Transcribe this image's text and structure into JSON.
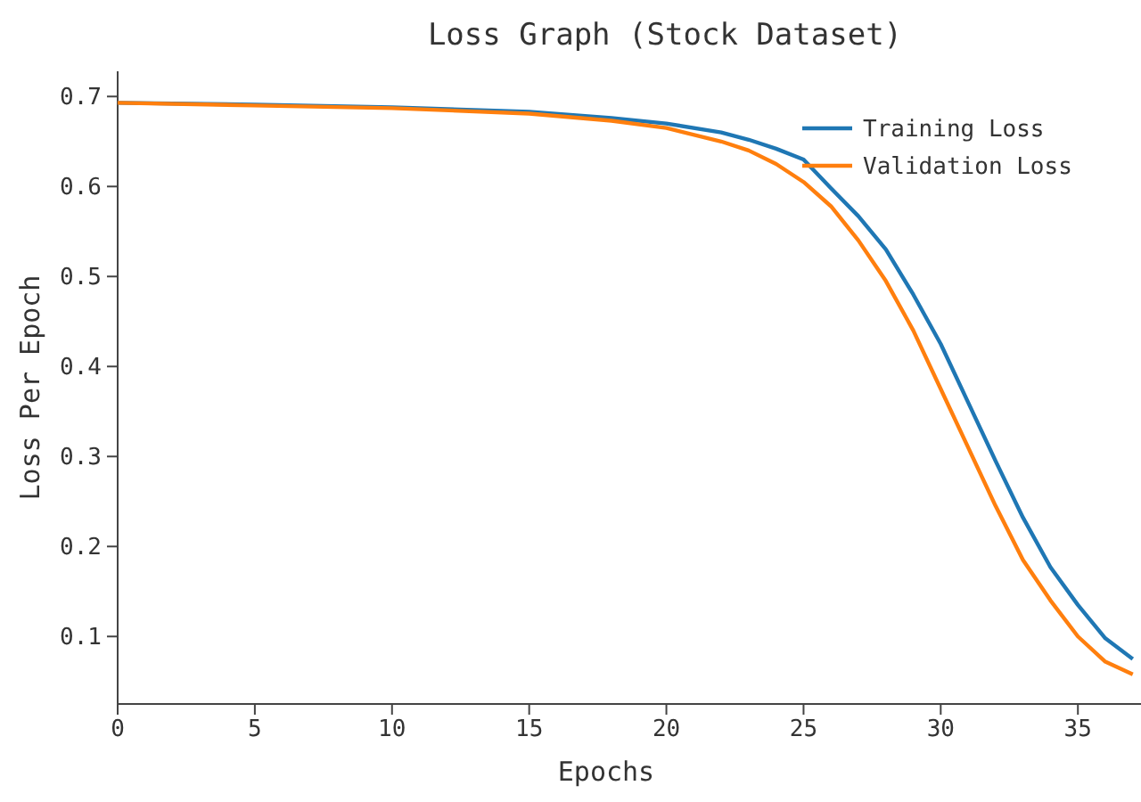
{
  "chart_data": {
    "type": "line",
    "title": "Loss Graph (Stock Dataset)",
    "xlabel": "Epochs",
    "ylabel": "Loss Per Epoch",
    "xlim": [
      0,
      37.3
    ],
    "xticks": [
      0,
      5,
      10,
      15,
      20,
      25,
      30,
      35
    ],
    "ylim": [
      0.025,
      0.728
    ],
    "yticks": [
      0.1,
      0.2,
      0.3,
      0.4,
      0.5,
      0.6,
      0.7
    ],
    "grid": false,
    "legend": "top right",
    "marker": "none",
    "line_style": "solid",
    "series": [
      {
        "name": "Training Loss",
        "color": "#1f77b4",
        "x": [
          0,
          5,
          10,
          15,
          18,
          20,
          22,
          23,
          24,
          25,
          26,
          27,
          28,
          29,
          30,
          31,
          32,
          33,
          34,
          35,
          36,
          37
        ],
        "values": [
          0.693,
          0.691,
          0.688,
          0.683,
          0.676,
          0.67,
          0.66,
          0.652,
          0.642,
          0.63,
          0.598,
          0.567,
          0.53,
          0.48,
          0.425,
          0.36,
          0.295,
          0.232,
          0.177,
          0.135,
          0.098,
          0.075
        ]
      },
      {
        "name": "Validation Loss",
        "color": "#ff7f0e",
        "x": [
          0,
          5,
          10,
          15,
          18,
          20,
          22,
          23,
          24,
          25,
          26,
          27,
          28,
          29,
          30,
          31,
          32,
          33,
          34,
          35,
          36,
          37
        ],
        "values": [
          0.693,
          0.69,
          0.687,
          0.681,
          0.673,
          0.665,
          0.65,
          0.64,
          0.625,
          0.605,
          0.578,
          0.54,
          0.495,
          0.44,
          0.375,
          0.31,
          0.245,
          0.185,
          0.14,
          0.1,
          0.072,
          0.058
        ]
      }
    ]
  }
}
